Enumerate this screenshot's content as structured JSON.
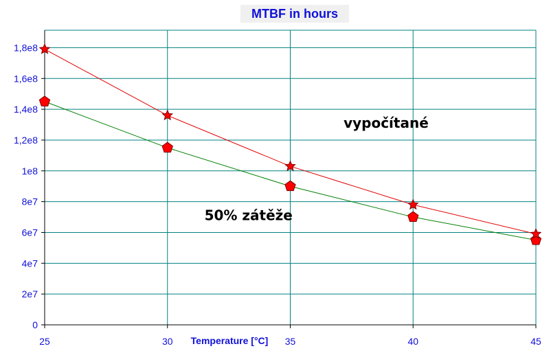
{
  "chart_data": {
    "type": "line",
    "title": "MTBF in hours",
    "xlabel": "Temperature [°C]",
    "ylabel": "",
    "x": [
      25,
      30,
      35,
      40,
      45
    ],
    "xlim": [
      25,
      45
    ],
    "ylim": [
      0,
      190000000
    ],
    "x_ticks": [
      25,
      30,
      35,
      40,
      45
    ],
    "x_tick_labels": [
      "25",
      "30",
      "35",
      "40",
      "45"
    ],
    "y_ticks": [
      0,
      20000000,
      40000000,
      60000000,
      80000000,
      100000000,
      120000000,
      140000000,
      160000000,
      180000000
    ],
    "y_tick_labels": [
      "0",
      "2e7",
      "4e7",
      "6e7",
      "8e7",
      "1e8",
      "1,2e8",
      "1,4e8",
      "1,6e8",
      "1,8e8"
    ],
    "grid": true,
    "series": [
      {
        "color": "#e00000",
        "marker": "star",
        "values": [
          179000000,
          136000000,
          103000000,
          78000000,
          59000000
        ]
      },
      {
        "color": "#008000",
        "marker": "pentagon",
        "values": [
          145000000,
          115000000,
          90000000,
          70000000,
          55000000
        ]
      }
    ],
    "annotations": [
      {
        "text": "vypočítané",
        "x": 38.9,
        "y": 128000000
      },
      {
        "text": "50% zátěže",
        "x": 33.3,
        "y": 68000000
      }
    ],
    "colors": {
      "grid": "#008080",
      "frame": "#000000",
      "text": "#1010d8",
      "marker_fill": "#ff0000",
      "marker_stroke": "#7a0000",
      "title_background": "#f0f0f0"
    }
  }
}
